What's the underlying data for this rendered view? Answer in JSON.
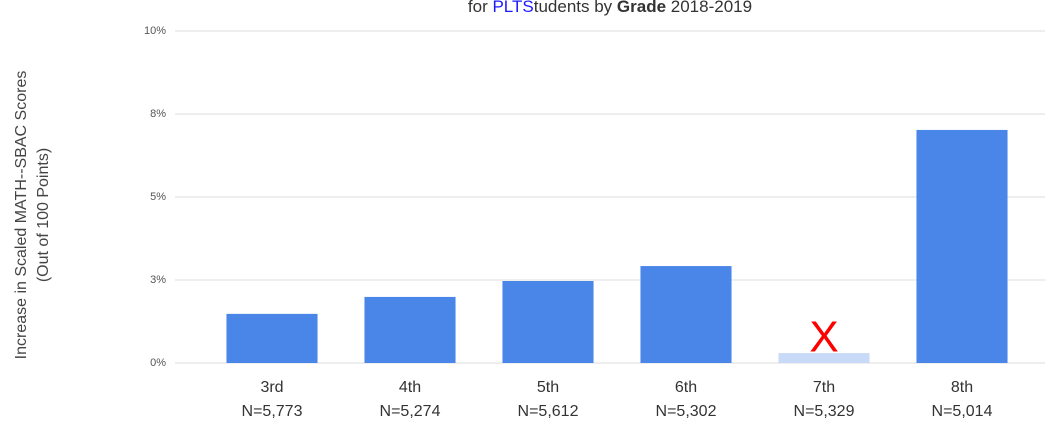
{
  "chart_data": {
    "type": "bar",
    "title": [
      "for ",
      "PLTS",
      "tudents by ",
      "Grade",
      " 2018-2019"
    ],
    "y_label": [
      "Increase in Scaled MATH--SBAC Scores",
      "(Out of 100 Points)"
    ],
    "categories": [
      "3rd",
      "4th",
      "5th",
      "6th",
      "7th",
      "8th"
    ],
    "n_labels": [
      "N=5,773",
      "N=5,274",
      "N=5,612",
      "N=5,302",
      "N=5,329",
      "N=5,014"
    ],
    "values": [
      1.48,
      1.99,
      2.47,
      2.92,
      0.3,
      7.02
    ],
    "colors": [
      "#4a86e8",
      "#4a86e8",
      "#4a86e8",
      "#4a86e8",
      "#c9daf8",
      "#4a86e8"
    ],
    "annotation": {
      "text": "X",
      "category": 4,
      "color": "#ff0000"
    },
    "ylim": [
      0,
      10
    ],
    "yticks": [
      {
        "value": 0,
        "label": "0%"
      },
      {
        "value": 2.5,
        "label": "3%"
      },
      {
        "value": 5,
        "label": "5%"
      },
      {
        "value": 7.5,
        "label": "8%"
      },
      {
        "value": 10,
        "label": "10%"
      }
    ],
    "grid": true
  }
}
